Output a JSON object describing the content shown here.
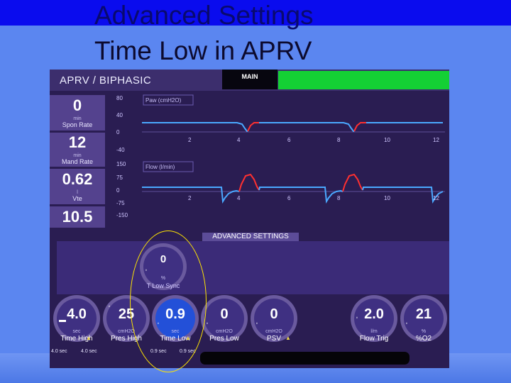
{
  "slide": {
    "title_line1": "Advanced Settings",
    "title_line2": "Time Low in APRV"
  },
  "header": {
    "mode": "APRV / BIPHASIC",
    "main_tab": "MAIN"
  },
  "monitored": [
    {
      "value": "0",
      "unit": "min",
      "label": "Spon Rate"
    },
    {
      "value": "12",
      "unit": "min",
      "label": "Mand Rate"
    },
    {
      "value": "0.62",
      "unit": "l",
      "label": "Vte"
    },
    {
      "value": "10.5",
      "unit": "",
      "label": ""
    }
  ],
  "waveforms": {
    "paw": {
      "label": "Paw (cmH2O)",
      "y_ticks": [
        "80",
        "40",
        "0",
        "-40"
      ],
      "x_ticks": [
        "2",
        "4",
        "6",
        "8",
        "10",
        "12"
      ]
    },
    "flow": {
      "label": "Flow (l/min)",
      "y_ticks": [
        "150",
        "75",
        "0",
        "-75",
        "-150"
      ],
      "x_ticks": [
        "2",
        "4",
        "6",
        "8",
        "10",
        "12"
      ]
    }
  },
  "advanced": {
    "title": "ADVANCED SETTINGS",
    "tlow_sync": {
      "value": "0",
      "unit": "%",
      "label": "T Low Sync"
    }
  },
  "settings": [
    {
      "value": "4.0",
      "unit": "sec",
      "label": "Time High",
      "range_low": "4.0 sec",
      "range_high": "4.0 sec",
      "warn": "▲"
    },
    {
      "value": "25",
      "unit": "cmH2O",
      "label": "Pres High"
    },
    {
      "value": "0.9",
      "unit": "sec",
      "label": "Time Low",
      "range_low": "0.9 sec",
      "range_high": "0.9 sec",
      "warn": "▲"
    },
    {
      "value": "0",
      "unit": "cmH2O",
      "label": "Pres Low"
    },
    {
      "value": "0",
      "unit": "cmH2O",
      "label": "PSV",
      "warn": "▲"
    },
    {
      "value": "2.0",
      "unit": "l/m",
      "label": "Flow Trig"
    },
    {
      "value": "21",
      "unit": "%",
      "label": "%O2"
    }
  ],
  "colors": {
    "screen_bg": "#2a1d52",
    "main_bar": "#14d034",
    "selected_knob": "#2350d8",
    "highlight_ellipse": "#ffe600",
    "trace_blue": "#4aa8ff",
    "trace_red": "#ff3030"
  },
  "icons": {
    "dial": "dial-tick-icon",
    "warning": "warning-triangle-icon"
  }
}
